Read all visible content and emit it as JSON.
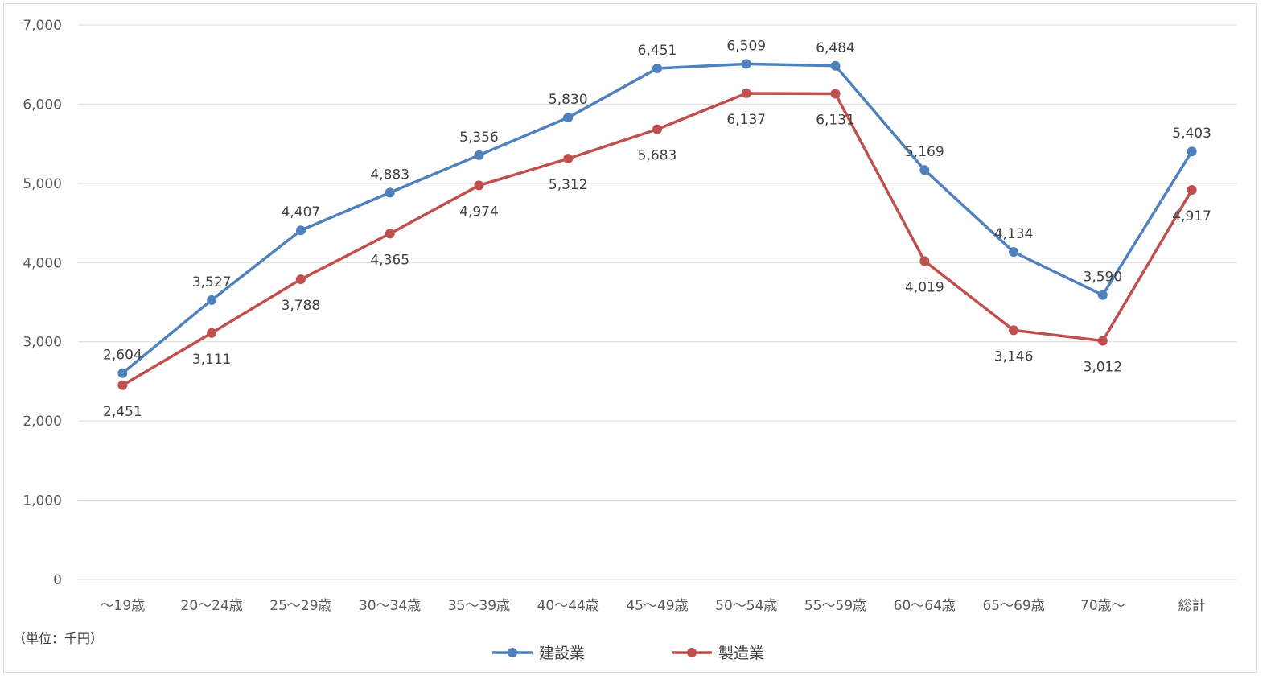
{
  "chart_data": {
    "type": "line",
    "categories": [
      "～19歳",
      "20～24歳",
      "25～29歳",
      "30～34歳",
      "35～39歳",
      "40～44歳",
      "45～49歳",
      "50～54歳",
      "55～59歳",
      "60～64歳",
      "65～69歳",
      "70歳～",
      "総計"
    ],
    "ylim": [
      0,
      7000
    ],
    "yticks": [
      "0",
      "1,000",
      "2,000",
      "3,000",
      "4,000",
      "5,000",
      "6,000",
      "7,000"
    ],
    "grid": true,
    "legend_position": "bottom",
    "unit_note": "（単位：千円）",
    "series": [
      {
        "name": "建設業",
        "color": "#4f81bd",
        "values": [
          2604,
          3527,
          4407,
          4883,
          5356,
          5830,
          6451,
          6509,
          6484,
          5169,
          4134,
          3590,
          5403
        ],
        "labels": [
          "2,604",
          "3,527",
          "4,407",
          "4,883",
          "5,356",
          "5,830",
          "6,451",
          "6,509",
          "6,484",
          "5,169",
          "4,134",
          "3,590",
          "5,403"
        ]
      },
      {
        "name": "製造業",
        "color": "#c0504d",
        "values": [
          2451,
          3111,
          3788,
          4365,
          4974,
          5312,
          5683,
          6137,
          6131,
          4019,
          3146,
          3012,
          4917
        ],
        "labels": [
          "2,451",
          "3,111",
          "3,788",
          "4,365",
          "4,974",
          "5,312",
          "5,683",
          "6,137",
          "6,131",
          "4,019",
          "3,146",
          "3,012",
          "4,917"
        ]
      }
    ]
  }
}
